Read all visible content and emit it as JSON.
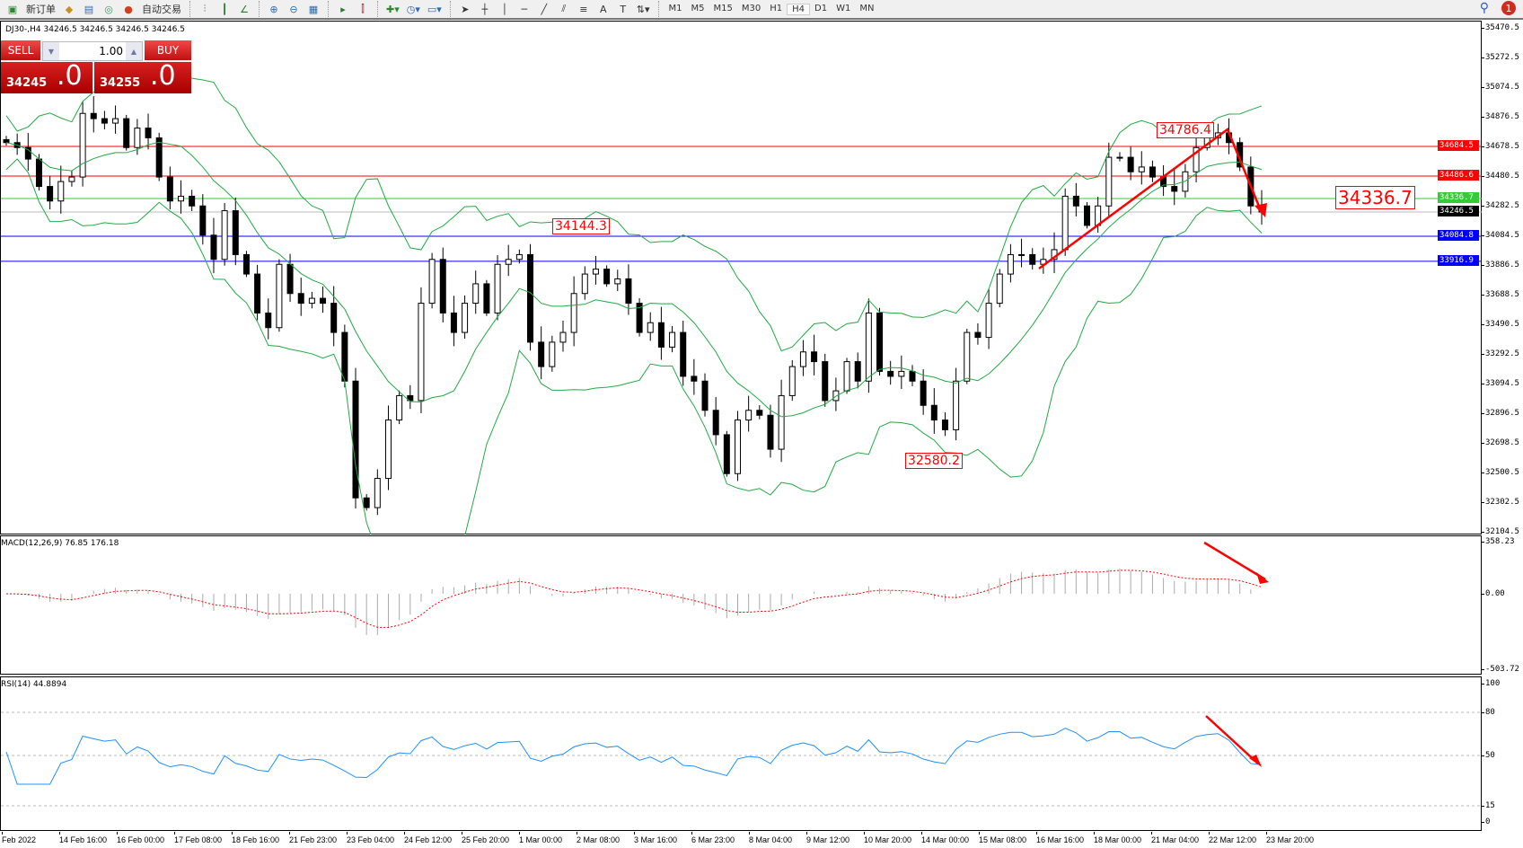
{
  "toolbar": {
    "new_order": "新订单",
    "auto_trading": "自动交易",
    "timeframes": [
      "M1",
      "M5",
      "M15",
      "M30",
      "H1",
      "H4",
      "D1",
      "W1",
      "MN"
    ],
    "active_timeframe": "H4",
    "notification_count": "1"
  },
  "chart": {
    "header": "DJ30-,H4  34246.5 34246.5 34246.5 34246.5",
    "symbol": "DJ30-",
    "timeframe": "H4"
  },
  "trade_panel": {
    "sell_label": "SELL",
    "buy_label": "BUY",
    "lot": "1.00",
    "sell_price_small": "34245",
    "sell_price_large": ".0",
    "buy_price_small": "34255",
    "buy_price_large": ".0"
  },
  "price_axis": [
    "35470.5",
    "35272.5",
    "35074.5",
    "34876.5",
    "34678.5",
    "34480.5",
    "34282.5",
    "34084.5",
    "33886.5",
    "33688.5",
    "33490.5",
    "33292.5",
    "33094.5",
    "32896.5",
    "32698.5",
    "32500.5",
    "32302.5",
    "32104.5"
  ],
  "horizontal_lines": [
    {
      "price": 34684.5,
      "label": "34684.5",
      "color": "#ff0000"
    },
    {
      "price": 34486.6,
      "label": "34486.6",
      "color": "#ff0000"
    },
    {
      "price": 34336.7,
      "label": "34336.7",
      "color": "#33cc33"
    },
    {
      "price": 34246.5,
      "label": "34246.5",
      "color": "#000000"
    },
    {
      "price": 34084.8,
      "label": "34084.8",
      "color": "#0000ff"
    },
    {
      "price": 33916.9,
      "label": "33916.9",
      "color": "#0000ff"
    }
  ],
  "annotations": {
    "a1": "34144.3",
    "a2": "32580.2",
    "a3": "34786.4",
    "a4": "34336.7"
  },
  "macd": {
    "label": "MACD(12,26,9) 76.85 176.18",
    "axis": [
      "358.23",
      "0.00",
      "-503.72"
    ],
    "max": 358.23,
    "min": -503.72
  },
  "rsi": {
    "label": "RSI(14) 44.8894",
    "axis": [
      "100",
      "80",
      "50",
      "15",
      "0"
    ],
    "levels": [
      80,
      50,
      15
    ]
  },
  "time_axis": [
    "Feb 2022",
    "14 Feb 16:00",
    "16 Feb 00:00",
    "17 Feb 08:00",
    "18 Feb 16:00",
    "21 Feb 23:00",
    "23 Feb 04:00",
    "24 Feb 12:00",
    "25 Feb 20:00",
    "1 Mar 00:00",
    "2 Mar 08:00",
    "3 Mar 16:00",
    "6 Mar 23:00",
    "8 Mar 04:00",
    "9 Mar 12:00",
    "10 Mar 20:00",
    "14 Mar 00:00",
    "15 Mar 08:00",
    "16 Mar 16:00",
    "18 Mar 00:00",
    "21 Mar 04:00",
    "22 Mar 12:00",
    "23 Mar 20:00"
  ],
  "chart_data": {
    "type": "candlestick",
    "ylim": [
      32104.5,
      35470.5
    ],
    "last_price": 34246.5,
    "approx_closes": [
      34710,
      34677,
      34600,
      34417,
      34320,
      34450,
      34480,
      34905,
      34870,
      34840,
      34870,
      34677,
      34807,
      34742,
      34480,
      34320,
      34352,
      34287,
      34092,
      33930,
      34255,
      33962,
      33832,
      33572,
      33474,
      33897,
      33702,
      33637,
      33670,
      33637,
      33442,
      33117,
      32337,
      32272,
      32467,
      32857,
      33020,
      32987,
      33637,
      33930,
      33572,
      33442,
      33637,
      33767,
      33572,
      33897,
      33930,
      33962,
      33377,
      33214,
      33377,
      33442,
      33702,
      33832,
      33865,
      33767,
      33800,
      33637,
      33442,
      33507,
      33344,
      33442,
      33149,
      33117,
      32922,
      32759,
      32499,
      32857,
      32922,
      32889,
      32662,
      33020,
      33214,
      33312,
      33247,
      32987,
      33052,
      33247,
      33117,
      33572,
      33182,
      33149,
      33182,
      33117,
      32955,
      32857,
      32792,
      33117,
      33442,
      33409,
      33637,
      33832,
      33962,
      33962,
      33897,
      33930,
      33995,
      34352,
      34287,
      34157,
      34287,
      34612,
      34612,
      34515,
      34547,
      34480,
      34417,
      34385,
      34515,
      34677,
      34742,
      34775,
      34710,
      34547,
      34287,
      34246.5
    ],
    "colors": {
      "bands": "#22aa44",
      "macd_hist": "#aaaaaa",
      "macd_signal": "#ff0000",
      "rsi": "#1e90ff",
      "arrows": "#ff0000"
    }
  }
}
